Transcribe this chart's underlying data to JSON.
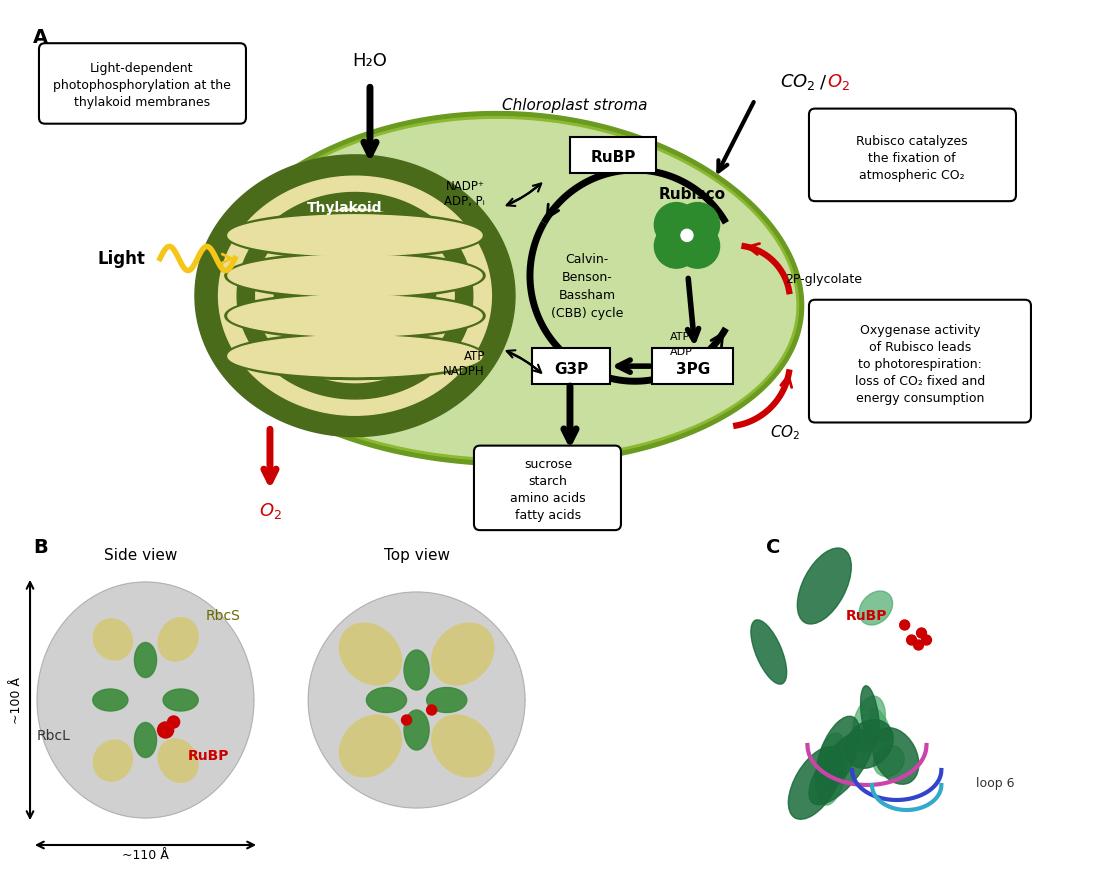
{
  "background_color": "#ffffff",
  "chloroplast_outer_color": "#8db832",
  "chloroplast_inner_color": "#c8dfa0",
  "chloroplast_border_color": "#6a9a1f",
  "thylakoid_outer_color": "#4a6b1a",
  "thylakoid_inner_color": "#e8e0a0",
  "thylakoid_label": "Thylakoid",
  "stroma_label": "Chloroplast stroma",
  "rubisco_color": "#2d8a2d",
  "rubisco_label": "Rubisco",
  "cbb_label": "Calvin-\nBenson-\nBassham\n(CBB) cycle",
  "rubp_label": "RuBP",
  "g3p_label": "G3P",
  "pg3_label": "3PG",
  "light_label": "Light",
  "h2o_label": "H₂O",
  "o2_label": "O₂",
  "co2_o2_label": "CO₂/O₂",
  "co2_label": "CO₂",
  "glycolate_label": "2P-glycolate",
  "atp_label": "ATP",
  "adp_label": "ADP",
  "nadp_label": "NADP⁺\nADP, Pᵢ",
  "atp_nadph_label": "ATP\nNADPH",
  "sucrose_label": "sucrose\nstarch\namino acids\nfatty acids",
  "box1_text": "Light-dependent\nphotophosphorylation at the\nthylakoid membranes",
  "box2_text": "Rubisco catalyzes\nthe fixation of\natmospheric CO₂",
  "box3_text": "Oxygenase activity\nof Rubisco leads\nto photorespiration:\nloss of CO₂ fixed and\nenergy consumption",
  "panel_A_label": "A",
  "panel_B_label": "B",
  "panel_C_label": "C",
  "side_view_label": "Side view",
  "top_view_label": "Top view",
  "rbcs_label": "RbcS",
  "rbcl_label": "RbcL",
  "rubp_red_label": "RuBP",
  "rubp_red_label2": "RuBP",
  "loop6_label": "loop 6",
  "dim_100_label": "~100 Å",
  "dim_110_label": "~110 Å",
  "arrow_black": "#000000",
  "arrow_red": "#cc0000",
  "arrow_yellow": "#f5c518",
  "text_red": "#cc0000",
  "text_black": "#000000",
  "box_fill": "#ffffff",
  "box_edge": "#000000"
}
